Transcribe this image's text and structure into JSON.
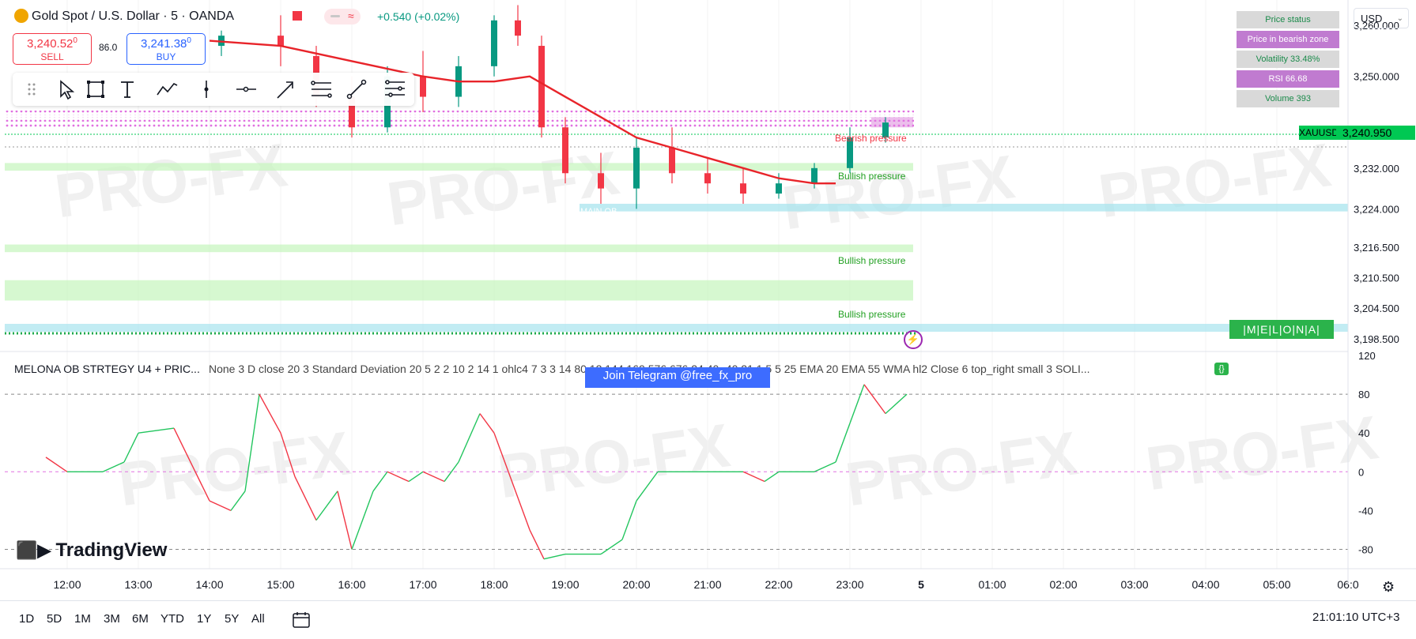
{
  "header": {
    "title": "Gold Spot / U.S. Dollar · 5 · OANDA",
    "change": "+0.540 (+0.02%)",
    "approx_symbol": "≈"
  },
  "trade": {
    "sell_price": "3,240.52",
    "sell_sup": "0",
    "sell_label": "SELL",
    "buy_price": "3,241.38",
    "buy_sup": "0",
    "buy_label": "BUY",
    "spread": "86.0"
  },
  "drawing_tools": [
    "drag-handle",
    "cursor",
    "rectangle",
    "text",
    "path",
    "vertical-line",
    "horizontal-ray",
    "arrow",
    "fib-retracement",
    "trend-line",
    "pitchfork"
  ],
  "status_panel": [
    {
      "label": "Price status",
      "style": "grey"
    },
    {
      "label": "Price in bearish zone",
      "style": "purple"
    },
    {
      "label": "Volatility 33.48%",
      "style": "grey"
    },
    {
      "label": "RSI 66.68",
      "style": "purple"
    },
    {
      "label": "Volume 393",
      "style": "grey"
    }
  ],
  "currency": "USD",
  "symbol_tag": "XAUUSD",
  "symbol_price": "3,240.950",
  "melona_tag": "|M|E|L|O|N|A|",
  "labels": {
    "bullish_pressure": "Bullish pressure",
    "bearish_pressure": "Bearish pressure",
    "ob": "MAIN OB",
    "lightning": "⚡"
  },
  "indicator": {
    "title": "MELONA OB STRTEGY U4 + PRIC...",
    "params": "None 3 D close 20 3 Standard Deviation 20 5 2 2 10 2 14 1 ohlc4 7 3 3 14 80 12 144 169 576 676 24 40 -40 21 1 5 5 25 EMA 20 EMA 55 WMA hl2 Close 6 top_right small 3 SOLI...",
    "badge": "{}"
  },
  "telegram_banner": "Join Telegram @free_fx_pro",
  "watermark": "PRO-FX",
  "brand": "TradingView",
  "timeframes": [
    "1D",
    "5D",
    "1M",
    "3M",
    "6M",
    "YTD",
    "1Y",
    "5Y",
    "All"
  ],
  "clock": "21:01:10 UTC+3",
  "colors": {
    "up": "#089981",
    "down": "#f23645",
    "ema_red": "#e8242a",
    "line_blue": "#2962ff",
    "bullish_zone": "#c8f5c0",
    "ob_zone": "#a8e4ee",
    "magenta_dots": "#e070e0",
    "tag_green": "#00c853"
  },
  "chart_data": [
    {
      "type": "candlestick",
      "symbol": "XAUUSD",
      "interval": "5",
      "ylim": [
        3196,
        3265
      ],
      "y_ticks": [
        "3,260.000",
        "3,250.000",
        "3,240.950",
        "3,232.000",
        "3,224.000",
        "3,216.500",
        "3,210.500",
        "3,204.500",
        "3,198.500"
      ],
      "x_ticks": [
        "12:00",
        "13:00",
        "14:00",
        "15:00",
        "16:00",
        "17:00",
        "18:00",
        "19:00",
        "20:00",
        "21:00",
        "22:00",
        "23:00",
        "5",
        "01:00",
        "02:00",
        "03:00",
        "04:00",
        "05:00",
        "06:0"
      ],
      "candles_approx": [
        {
          "t": "14:10",
          "o": 3256,
          "h": 3259,
          "c": 3258,
          "l": 3254
        },
        {
          "t": "15:00",
          "o": 3258,
          "h": 3262,
          "c": 3256,
          "l": 3252
        },
        {
          "t": "15:30",
          "o": 3254,
          "h": 3256,
          "c": 3246,
          "l": 3244
        },
        {
          "t": "16:00",
          "o": 3246,
          "h": 3250,
          "c": 3240,
          "l": 3238
        },
        {
          "t": "16:30",
          "o": 3240,
          "h": 3252,
          "c": 3250,
          "l": 3239
        },
        {
          "t": "17:00",
          "o": 3250,
          "h": 3255,
          "c": 3246,
          "l": 3243
        },
        {
          "t": "17:30",
          "o": 3246,
          "h": 3254,
          "c": 3252,
          "l": 3244
        },
        {
          "t": "18:00",
          "o": 3252,
          "h": 3262,
          "c": 3261,
          "l": 3250
        },
        {
          "t": "18:20",
          "o": 3261,
          "h": 3264,
          "c": 3258,
          "l": 3256
        },
        {
          "t": "18:40",
          "o": 3256,
          "h": 3258,
          "c": 3240,
          "l": 3238
        },
        {
          "t": "19:00",
          "o": 3240,
          "h": 3242,
          "c": 3231,
          "l": 3229
        },
        {
          "t": "19:30",
          "o": 3231,
          "h": 3235,
          "c": 3228,
          "l": 3225
        },
        {
          "t": "20:00",
          "o": 3228,
          "h": 3238,
          "c": 3236,
          "l": 3224
        },
        {
          "t": "20:30",
          "o": 3236,
          "h": 3240,
          "c": 3231,
          "l": 3229
        },
        {
          "t": "21:00",
          "o": 3231,
          "h": 3234,
          "c": 3229,
          "l": 3227
        },
        {
          "t": "21:30",
          "o": 3229,
          "h": 3232,
          "c": 3227,
          "l": 3225
        },
        {
          "t": "22:00",
          "o": 3227,
          "h": 3231,
          "c": 3229,
          "l": 3226
        },
        {
          "t": "22:30",
          "o": 3229,
          "h": 3233,
          "c": 3232,
          "l": 3228
        },
        {
          "t": "23:00",
          "o": 3232,
          "h": 3240,
          "c": 3238,
          "l": 3231
        },
        {
          "t": "23:30",
          "o": 3238,
          "h": 3242,
          "c": 3240.95,
          "l": 3237
        }
      ],
      "ema_red": [
        [
          14.0,
          3257
        ],
        [
          15.0,
          3256
        ],
        [
          16.0,
          3253
        ],
        [
          17.0,
          3250
        ],
        [
          17.5,
          3249
        ],
        [
          18.0,
          3249
        ],
        [
          18.5,
          3250
        ],
        [
          19.0,
          3246
        ],
        [
          19.5,
          3242
        ],
        [
          20.0,
          3238
        ],
        [
          20.5,
          3236
        ],
        [
          21.0,
          3234
        ],
        [
          21.5,
          3232
        ],
        [
          22.0,
          3230
        ],
        [
          22.5,
          3229
        ],
        [
          22.8,
          3229
        ]
      ],
      "zones": [
        {
          "kind": "bullish",
          "label": "Bullish pressure",
          "y": [
            3231.5,
            3233
          ]
        },
        {
          "kind": "bullish",
          "label": "Bullish pressure",
          "y": [
            3215.5,
            3217
          ]
        },
        {
          "kind": "bullish",
          "label": "Bullish pressure",
          "y": [
            3206,
            3210
          ]
        },
        {
          "kind": "ob",
          "label": "MAIN OB",
          "y": [
            3223.5,
            3225
          ]
        },
        {
          "kind": "bearish",
          "label": "Bearish pressure",
          "y": [
            3240,
            3242
          ]
        }
      ]
    },
    {
      "type": "line",
      "name": "oscillator",
      "ylim": [
        -100,
        120
      ],
      "y_ticks": [
        "120",
        "80",
        "40",
        "0",
        "-40",
        "-80"
      ],
      "levels": [
        80,
        0,
        -80
      ],
      "series": [
        {
          "values": [
            [
              11.7,
              15
            ],
            [
              12.0,
              0
            ],
            [
              12.5,
              0
            ],
            [
              12.8,
              10
            ],
            [
              13.0,
              40
            ],
            [
              13.5,
              45
            ],
            [
              13.8,
              0
            ],
            [
              14.0,
              -30
            ],
            [
              14.3,
              -40
            ],
            [
              14.5,
              -20
            ],
            [
              14.7,
              80
            ],
            [
              15.0,
              40
            ],
            [
              15.2,
              -5
            ],
            [
              15.5,
              -50
            ],
            [
              15.8,
              -20
            ],
            [
              16.0,
              -80
            ],
            [
              16.3,
              -20
            ],
            [
              16.5,
              0
            ],
            [
              16.8,
              -10
            ],
            [
              17.0,
              0
            ],
            [
              17.3,
              -10
            ],
            [
              17.5,
              10
            ],
            [
              17.8,
              60
            ],
            [
              18.0,
              40
            ],
            [
              18.2,
              0
            ],
            [
              18.5,
              -60
            ],
            [
              18.7,
              -90
            ],
            [
              19.0,
              -85
            ],
            [
              19.5,
              -85
            ],
            [
              19.8,
              -70
            ],
            [
              20.0,
              -30
            ],
            [
              20.3,
              0
            ],
            [
              20.5,
              0
            ],
            [
              21.0,
              0
            ],
            [
              21.5,
              0
            ],
            [
              21.8,
              -10
            ],
            [
              22.0,
              0
            ],
            [
              22.5,
              0
            ],
            [
              22.8,
              10
            ],
            [
              23.0,
              50
            ],
            [
              23.2,
              90
            ],
            [
              23.5,
              60
            ],
            [
              23.8,
              80
            ]
          ]
        }
      ]
    }
  ]
}
